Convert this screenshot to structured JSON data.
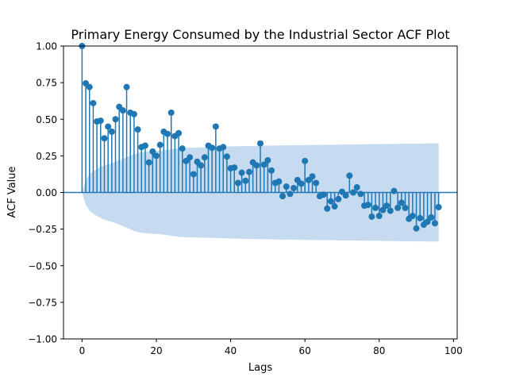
{
  "chart_data": {
    "type": "stem",
    "title": "Primary Energy Consumed by the Industrial Sector ACF Plot",
    "xlabel": "Lags",
    "ylabel": "ACF Value",
    "xlim": [
      -5,
      101
    ],
    "ylim": [
      -1.0,
      1.0
    ],
    "x_ticks": [
      0,
      20,
      40,
      60,
      80,
      100
    ],
    "y_ticks": [
      -1.0,
      -0.75,
      -0.5,
      -0.25,
      0.0,
      0.25,
      0.5,
      0.75,
      1.0
    ],
    "x_tick_labels": [
      "0",
      "20",
      "40",
      "60",
      "80",
      "100"
    ],
    "y_tick_labels": [
      "−1.00",
      "−0.75",
      "−0.50",
      "−0.25",
      "0.00",
      "0.25",
      "0.50",
      "0.75",
      "1.00"
    ],
    "series_color": "#1f77b4",
    "band_color": "#c6dbef",
    "acf_values": [
      1.0,
      0.745,
      0.72,
      0.61,
      0.485,
      0.49,
      0.37,
      0.45,
      0.415,
      0.5,
      0.585,
      0.56,
      0.72,
      0.545,
      0.535,
      0.43,
      0.31,
      0.32,
      0.205,
      0.28,
      0.25,
      0.325,
      0.415,
      0.4,
      0.545,
      0.385,
      0.405,
      0.3,
      0.215,
      0.24,
      0.125,
      0.21,
      0.185,
      0.24,
      0.32,
      0.305,
      0.45,
      0.3,
      0.31,
      0.245,
      0.165,
      0.17,
      0.065,
      0.135,
      0.08,
      0.14,
      0.205,
      0.185,
      0.335,
      0.19,
      0.22,
      0.15,
      0.065,
      0.075,
      -0.025,
      0.04,
      -0.01,
      0.03,
      0.085,
      0.06,
      0.215,
      0.085,
      0.11,
      0.065,
      -0.025,
      -0.015,
      -0.11,
      -0.06,
      -0.095,
      -0.045,
      0.005,
      -0.02,
      0.115,
      0.0,
      0.035,
      -0.01,
      -0.09,
      -0.085,
      -0.165,
      -0.105,
      -0.16,
      -0.12,
      -0.09,
      -0.125,
      0.01,
      -0.105,
      -0.07,
      -0.105,
      -0.18,
      -0.16,
      -0.245,
      -0.175,
      -0.22,
      -0.2,
      -0.17,
      -0.21,
      -0.1
    ],
    "confidence_band_upper": [
      0.0,
      0.085,
      0.125,
      0.145,
      0.16,
      0.175,
      0.185,
      0.193,
      0.2,
      0.21,
      0.22,
      0.23,
      0.24,
      0.252,
      0.262,
      0.27,
      0.275,
      0.278,
      0.28,
      0.282,
      0.284,
      0.286,
      0.288,
      0.292,
      0.295,
      0.299,
      0.302,
      0.304,
      0.305,
      0.306,
      0.307,
      0.307,
      0.308,
      0.308,
      0.309,
      0.31,
      0.311,
      0.312,
      0.313,
      0.314,
      0.315,
      0.315,
      0.316,
      0.316,
      0.317,
      0.317,
      0.318,
      0.318,
      0.319,
      0.319,
      0.32,
      0.32,
      0.321,
      0.321,
      0.322,
      0.322,
      0.322,
      0.323,
      0.323,
      0.323,
      0.324,
      0.324,
      0.324,
      0.325,
      0.325,
      0.325,
      0.326,
      0.326,
      0.326,
      0.327,
      0.327,
      0.327,
      0.328,
      0.328,
      0.328,
      0.329,
      0.329,
      0.329,
      0.33,
      0.33,
      0.33,
      0.331,
      0.331,
      0.331,
      0.332,
      0.332,
      0.332,
      0.333,
      0.333,
      0.333,
      0.334,
      0.334,
      0.334,
      0.335,
      0.335,
      0.335,
      0.336
    ]
  }
}
